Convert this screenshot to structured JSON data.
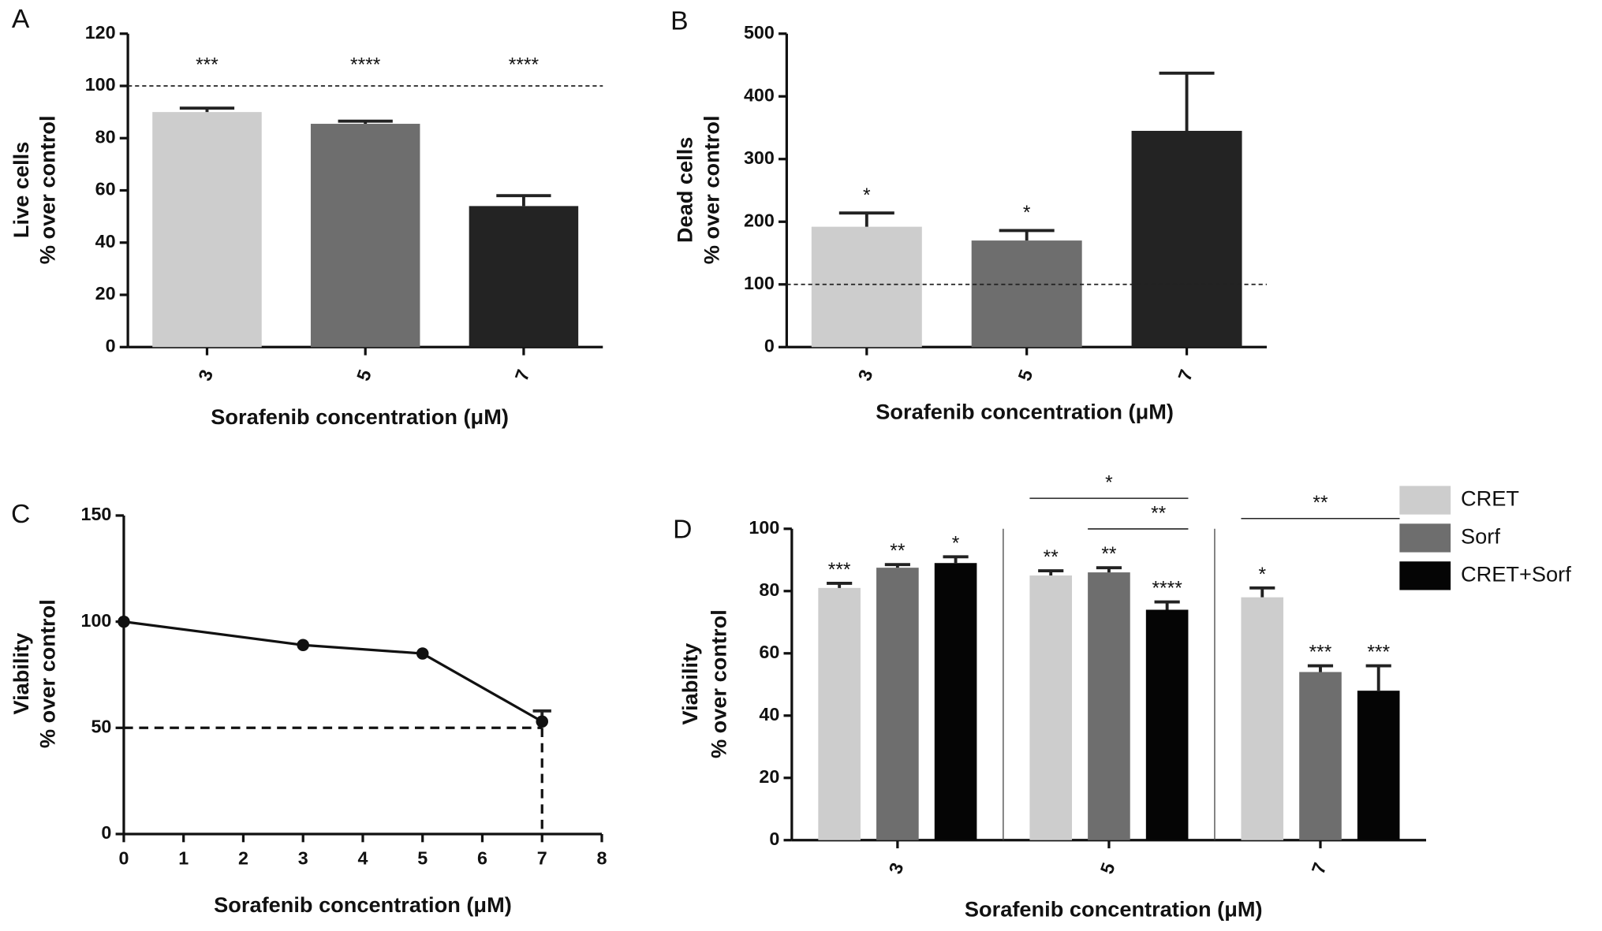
{
  "chart_data": [
    {
      "type": "bar",
      "panel": "A",
      "ylabel": [
        "Live cells",
        "% over control"
      ],
      "xlabel": "Sorafenib concentration (μM)",
      "categories": [
        "3",
        "5",
        "7"
      ],
      "values": [
        90,
        85.5,
        54
      ],
      "errors": [
        1.5,
        1,
        4
      ],
      "colors": [
        "#cdcdcd",
        "#6e6e6e",
        "#232323"
      ],
      "annotations": [
        "***",
        "****",
        "****"
      ],
      "reference_line": 100,
      "ylim": [
        0,
        120
      ],
      "yticks": [
        0,
        20,
        40,
        60,
        80,
        100,
        120
      ]
    },
    {
      "type": "bar",
      "panel": "B",
      "ylabel": [
        "Dead cells",
        "% over control"
      ],
      "xlabel": "Sorafenib concentration (μM)",
      "categories": [
        "3",
        "5",
        "7"
      ],
      "values": [
        192,
        170,
        345
      ],
      "errors": [
        22,
        16,
        92
      ],
      "colors": [
        "#cdcdcd",
        "#6e6e6e",
        "#232323"
      ],
      "annotations": [
        "*",
        "*",
        null
      ],
      "reference_line": 100,
      "ylim": [
        0,
        500
      ],
      "yticks": [
        0,
        100,
        200,
        300,
        400,
        500
      ]
    },
    {
      "type": "line",
      "panel": "C",
      "ylabel": [
        "Viability",
        "% over control"
      ],
      "xlabel": "Sorafenib concentration (μM)",
      "x": [
        0,
        3,
        5,
        7
      ],
      "values": [
        100,
        89,
        85,
        53
      ],
      "errors": [
        null,
        null,
        null,
        5
      ],
      "color": "#111111",
      "hline": 50,
      "vline": 7,
      "xlim": [
        0,
        8
      ],
      "xticks": [
        0,
        1,
        2,
        3,
        4,
        5,
        6,
        7,
        8
      ],
      "ylim": [
        0,
        150
      ],
      "yticks": [
        0,
        50,
        100,
        150
      ]
    },
    {
      "type": "bar",
      "panel": "D",
      "ylabel": [
        "Viability",
        "% over control"
      ],
      "xlabel": "Sorafenib concentration (μM)",
      "categories": [
        "3",
        "5",
        "7"
      ],
      "series": [
        {
          "name": "CRET",
          "color": "#cdcdcd",
          "values": [
            81,
            85,
            78
          ],
          "errors": [
            1.5,
            1.5,
            3
          ],
          "annotations": [
            "***",
            "**",
            "*"
          ]
        },
        {
          "name": "Sorf",
          "color": "#6e6e6e",
          "values": [
            87.5,
            86,
            54
          ],
          "errors": [
            1,
            1.5,
            2
          ],
          "annotations": [
            "**",
            "**",
            "***"
          ]
        },
        {
          "name": "CRET+Sorf",
          "color": "#050505",
          "values": [
            89,
            74,
            48
          ],
          "errors": [
            2,
            2.5,
            8
          ],
          "annotations": [
            "*",
            "****",
            "***"
          ]
        }
      ],
      "comparisons": [
        {
          "category": 1,
          "from": 0,
          "to": 2,
          "label": "*"
        },
        {
          "category": 1,
          "from": 1,
          "to": 2,
          "label": "**"
        },
        {
          "category": 2,
          "from": 0,
          "to": 2,
          "label": "**"
        }
      ],
      "ylim": [
        0,
        100
      ],
      "yticks": [
        0,
        20,
        40,
        60,
        80,
        100
      ]
    }
  ]
}
